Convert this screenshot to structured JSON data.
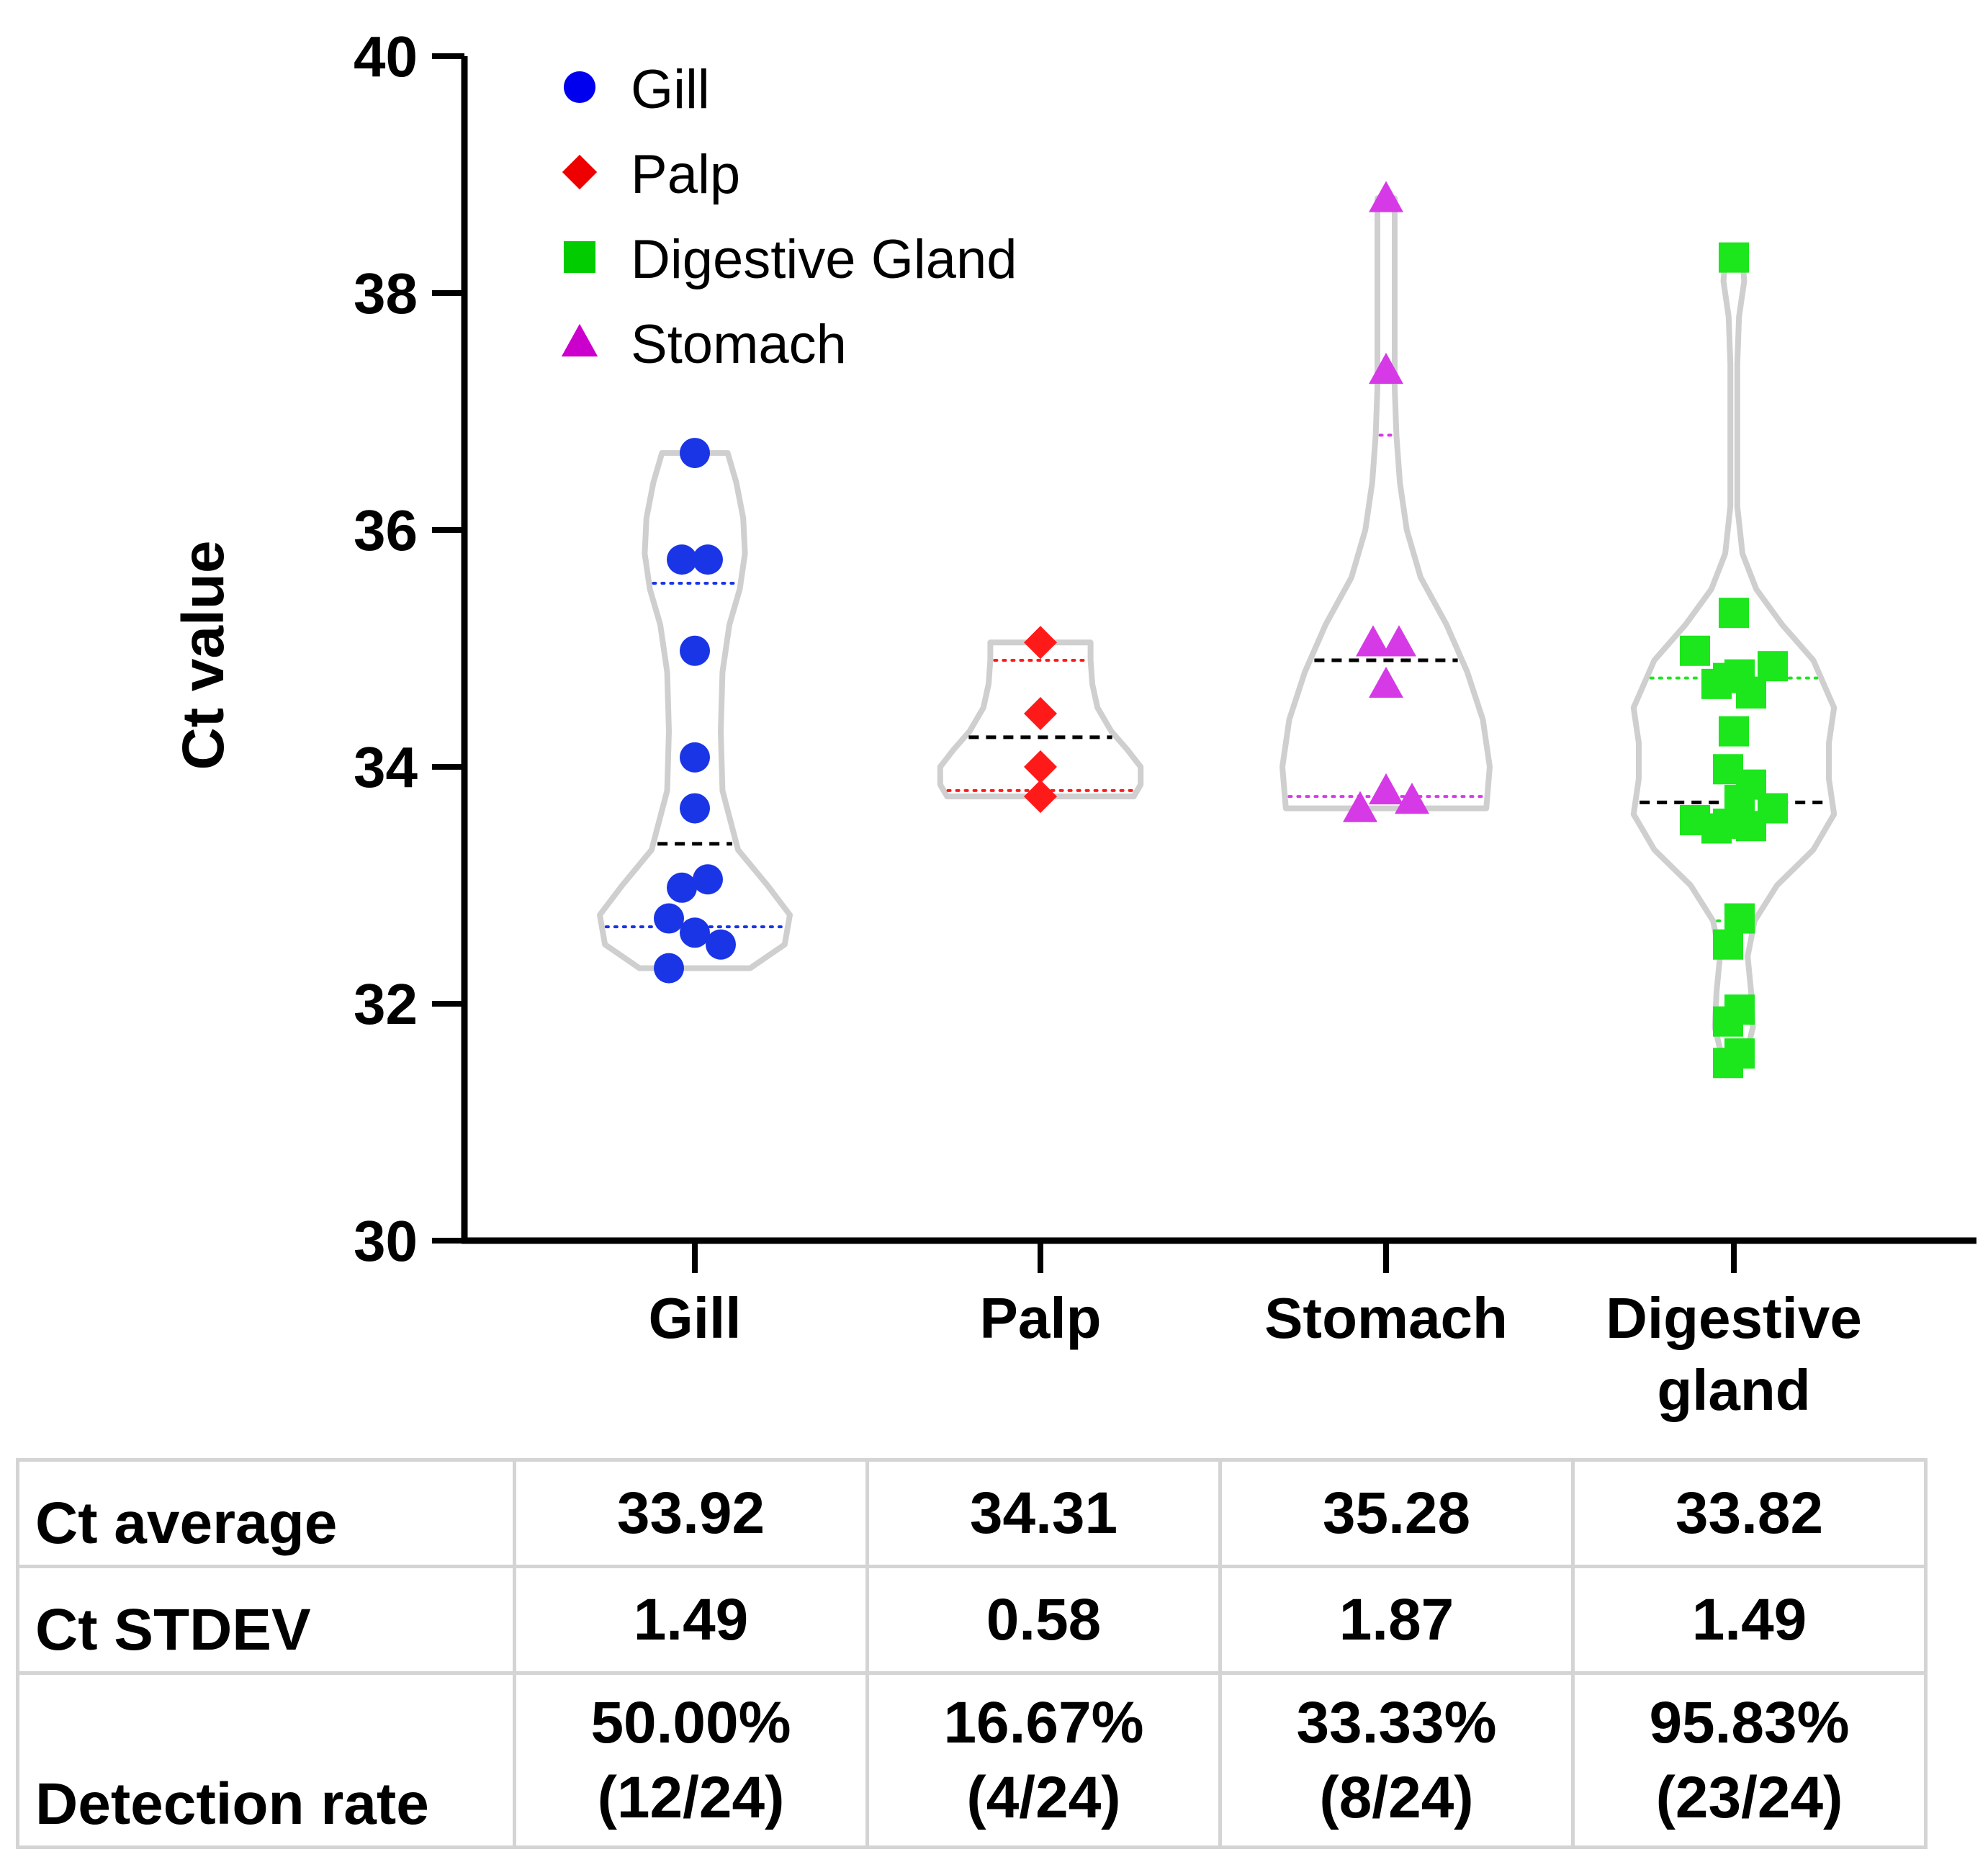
{
  "chart_data": {
    "type": "scatter",
    "subtype": "violin",
    "title": "",
    "xlabel": "",
    "ylabel": "Ct value",
    "ylim": [
      30,
      40
    ],
    "yticks": [
      30,
      32,
      34,
      36,
      38,
      40
    ],
    "categories": [
      "Gill",
      "Palp",
      "Stomach",
      "Digestive gland"
    ],
    "legend": [
      {
        "name": "Gill",
        "color": "#0000ee",
        "marker": "circle"
      },
      {
        "name": "Palp",
        "color": "#ee0000",
        "marker": "diamond"
      },
      {
        "name": "Digestive Gland",
        "color": "#00cc00",
        "marker": "square"
      },
      {
        "name": "Stomach",
        "color": "#cc00cc",
        "marker": "triangle"
      }
    ],
    "legend_position": "top-left",
    "series": [
      {
        "name": "Gill",
        "category": "Gill",
        "marker": "circle",
        "color": "#1a35e6",
        "values": [
          36.65,
          35.75,
          35.75,
          34.98,
          34.08,
          33.65,
          33.05,
          32.98,
          32.72,
          32.6,
          32.5,
          32.3
        ],
        "offsets": [
          0,
          -0.45,
          0.45,
          0,
          0,
          0,
          0.45,
          -0.45,
          -0.9,
          0,
          0.9,
          -0.9
        ],
        "median": 33.35,
        "q1": 32.65,
        "q3": 35.55,
        "violin": [
          [
            32.3,
            0.32
          ],
          [
            32.5,
            0.52
          ],
          [
            32.75,
            0.55
          ],
          [
            33.0,
            0.42
          ],
          [
            33.3,
            0.25
          ],
          [
            33.8,
            0.16
          ],
          [
            34.3,
            0.15
          ],
          [
            34.8,
            0.16
          ],
          [
            35.2,
            0.2
          ],
          [
            35.5,
            0.26
          ],
          [
            35.8,
            0.29
          ],
          [
            36.1,
            0.28
          ],
          [
            36.4,
            0.24
          ],
          [
            36.65,
            0.19
          ]
        ]
      },
      {
        "name": "Palp",
        "category": "Palp",
        "marker": "diamond",
        "color": "#ff1a1a",
        "values": [
          35.05,
          34.45,
          34.0,
          33.75
        ],
        "offsets": [
          0,
          0,
          0,
          0
        ],
        "median": 34.25,
        "q1": 33.8,
        "q3": 34.9,
        "violin": [
          [
            33.75,
            0.54
          ],
          [
            33.85,
            0.58
          ],
          [
            34.0,
            0.58
          ],
          [
            34.15,
            0.5
          ],
          [
            34.3,
            0.41
          ],
          [
            34.5,
            0.33
          ],
          [
            34.7,
            0.3
          ],
          [
            34.9,
            0.29
          ],
          [
            35.05,
            0.29
          ]
        ]
      },
      {
        "name": "Stomach",
        "category": "Stomach",
        "marker": "triangle",
        "color": "#d63ae6",
        "values": [
          38.8,
          37.35,
          35.05,
          35.05,
          34.7,
          33.8,
          33.72,
          33.65
        ],
        "offsets": [
          0,
          0,
          -0.45,
          0.45,
          0,
          0,
          0.9,
          -0.9
        ],
        "median": 34.9,
        "q1": 33.75,
        "q3": 36.8,
        "violin": [
          [
            33.65,
            0.58
          ],
          [
            34.0,
            0.6
          ],
          [
            34.4,
            0.56
          ],
          [
            34.8,
            0.47
          ],
          [
            35.2,
            0.35
          ],
          [
            35.6,
            0.2
          ],
          [
            36.0,
            0.12
          ],
          [
            36.4,
            0.08
          ],
          [
            36.8,
            0.06
          ],
          [
            37.2,
            0.05
          ],
          [
            37.6,
            0.05
          ],
          [
            38.0,
            0.05
          ],
          [
            38.4,
            0.05
          ],
          [
            38.8,
            0.05
          ]
        ]
      },
      {
        "name": "Digestive gland",
        "category": "Digestive gland",
        "marker": "square",
        "color": "#1ce61c",
        "values": [
          38.3,
          35.3,
          34.98,
          34.85,
          34.78,
          34.75,
          34.7,
          34.62,
          34.3,
          33.98,
          33.85,
          33.72,
          33.65,
          33.55,
          33.52,
          33.5,
          33.48,
          32.72,
          32.5,
          31.95,
          31.85,
          31.58,
          31.5
        ],
        "offsets": [
          0,
          0,
          -1.35,
          1.35,
          0.2,
          -0.2,
          -0.6,
          0.6,
          0,
          -0.2,
          0.6,
          0.2,
          1.35,
          -1.35,
          -0.2,
          0.6,
          -0.6,
          0.2,
          -0.2,
          0.2,
          -0.2,
          0.2,
          -0.2
        ],
        "median": 33.7,
        "q1": 32.7,
        "q3": 34.75,
        "violin": [
          [
            31.5,
            0.06
          ],
          [
            31.8,
            0.11
          ],
          [
            32.1,
            0.1
          ],
          [
            32.4,
            0.08
          ],
          [
            32.7,
            0.12
          ],
          [
            33.0,
            0.25
          ],
          [
            33.3,
            0.46
          ],
          [
            33.6,
            0.58
          ],
          [
            33.9,
            0.55
          ],
          [
            34.2,
            0.55
          ],
          [
            34.5,
            0.58
          ],
          [
            34.9,
            0.46
          ],
          [
            35.2,
            0.28
          ],
          [
            35.5,
            0.13
          ],
          [
            35.8,
            0.05
          ],
          [
            36.2,
            0.02
          ],
          [
            36.6,
            0.02
          ],
          [
            37.0,
            0.02
          ],
          [
            37.4,
            0.02
          ],
          [
            37.8,
            0.03
          ],
          [
            38.1,
            0.06
          ],
          [
            38.3,
            0.05
          ]
        ]
      }
    ]
  },
  "table": {
    "rows": [
      {
        "label": "Ct average",
        "values": [
          "33.92",
          "34.31",
          "35.28",
          "33.82"
        ]
      },
      {
        "label": "Ct STDEV",
        "values": [
          "1.49",
          "0.58",
          "1.87",
          "1.49"
        ]
      },
      {
        "label": "Detection rate",
        "percents": [
          "50.00%",
          "16.67%",
          "33.33%",
          "95.83%"
        ],
        "counts": [
          "(12/24)",
          "(4/24)",
          "(8/24)",
          "(23/24)"
        ]
      }
    ]
  }
}
